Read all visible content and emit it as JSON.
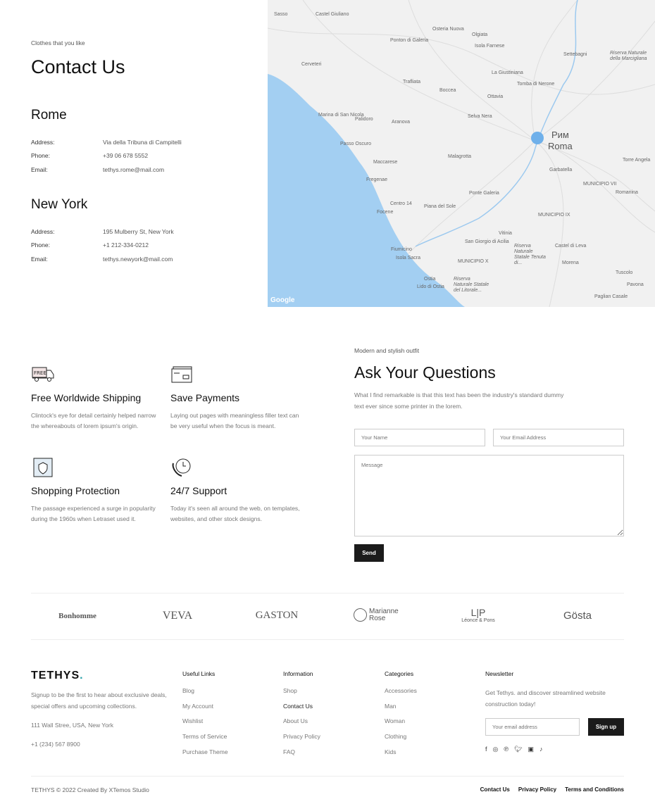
{
  "contact": {
    "eyebrow": "Clothes that you like",
    "title": "Contact Us",
    "offices": [
      {
        "city": "Rome",
        "rows": [
          {
            "label": "Address:",
            "value": "Via della Tribuna di Campitelli"
          },
          {
            "label": "Phone:",
            "value": "+39 06 678 5552"
          },
          {
            "label": "Email:",
            "value": "tethys.rome@mail.com"
          }
        ]
      },
      {
        "city": "New York",
        "rows": [
          {
            "label": "Address:",
            "value": "195 Mulberry St, New York"
          },
          {
            "label": "Phone:",
            "value": "+1 212-334-0212"
          },
          {
            "label": "Email:",
            "value": "tethys.newyork@mail.com"
          }
        ]
      }
    ]
  },
  "map": {
    "city_label_ru": "Рим",
    "city_label": "Roma",
    "attribution": "Google",
    "sea_color": "#a3cff2",
    "marker_color": "#6fb0ea",
    "labels": [
      "Sasso",
      "Castel Giuliano",
      "Cerveteri",
      "Ponton di Galeria",
      "Osteria Nuova",
      "Olgiata",
      "Isola Farnese",
      "La Giustiniana",
      "Tomba di Nerone",
      "Settebagni",
      "Riserva Naturale della Marcigliana",
      "Trafliata",
      "Boccea",
      "Ottavia",
      "Marina di San Nicola",
      "Palidoro",
      "Aranova",
      "Selva Nera",
      "Passo Oscuro",
      "Maccarese",
      "Malagrotta",
      "Garbatella",
      "Torre Angela",
      "Fregenae",
      "Centro 14",
      "Piana del Sole",
      "Ponte Galeria",
      "MUNICIPIO VII",
      "Focene",
      "MUNICIPIO IX",
      "Fiumicino",
      "Isola Sacra",
      "San Giorgio di Acilia",
      "MUNICIPIO X",
      "Riserva Naturale Statale Tenuta di...",
      "Vitinia",
      "Castel di Leva",
      "Romanina",
      "Tuscolo",
      "Morena",
      "Pavona",
      "Paglian Casale",
      "Ostia",
      "Lido di Ostia",
      "Riserva Naturale Statale del Litorale..."
    ]
  },
  "features": [
    {
      "icon": "free-shipping-truck-icon",
      "title": "Free Worldwide Shipping",
      "text": "Clintock's eye for detail certainly helped narrow the whereabouts of lorem ipsum's origin."
    },
    {
      "icon": "credit-card-icon",
      "title": "Save Payments",
      "text": "Laying out pages with meaningless filler text can be very useful when the focus is meant."
    },
    {
      "icon": "shield-box-icon",
      "title": "Shopping Protection",
      "text": "The passage experienced a surge in popularity during the 1960s when Letraset used it."
    },
    {
      "icon": "phone-clock-icon",
      "title": "24/7 Support",
      "text": "Today it's seen all around the web, on templates, websites, and other stock designs."
    }
  ],
  "form": {
    "eyebrow": "Modern and stylish outfit",
    "title": "Ask Your Questions",
    "intro": "What I find remarkable is that this text has been the industry's standard dummy text ever since some printer in the lorem.",
    "name_placeholder": "Your Name",
    "email_placeholder": "Your Email Address",
    "message_placeholder": "Message",
    "send": "Send"
  },
  "brands": [
    "Bonhomme",
    "VEVA",
    "GASTON",
    "Marianne Rose",
    "L|P",
    "Léonce & Pons",
    "Gösta"
  ],
  "footer": {
    "logo": "TETHYS",
    "logo_dot": ".",
    "accent": "#2aa1a8",
    "about": "Signup to be the first to hear about exclusive deals, special offers and upcoming collections.",
    "address": "111 Wall Stree, USA, New York",
    "phone": "+1 (234) 567 8900",
    "columns": [
      {
        "title": "Useful Links",
        "links": [
          "Blog",
          "My Account",
          "Wishlist",
          "Terms of Service",
          "Purchase Theme"
        ]
      },
      {
        "title": "Information",
        "links": [
          "Shop",
          "Contact Us",
          "About Us",
          "Privacy Policy",
          "FAQ"
        ]
      },
      {
        "title": "Categories",
        "links": [
          "Accessories",
          "Man",
          "Woman",
          "Clothing",
          "Kids"
        ]
      }
    ],
    "newsletter": {
      "title": "Newsletter",
      "text": "Get Tethys. and discover streamlined website construction today!",
      "placeholder": "Your email address",
      "button": "Sign up"
    },
    "social": [
      "facebook-icon",
      "instagram-icon",
      "pinterest-icon",
      "twitter-icon",
      "youtube-icon",
      "tiktok-icon"
    ],
    "copyright": "TETHYS © 2022 Created By XTemos Studio",
    "bottom_links": [
      "Contact Us",
      "Privacy Policy",
      "Terms and Conditions"
    ]
  }
}
